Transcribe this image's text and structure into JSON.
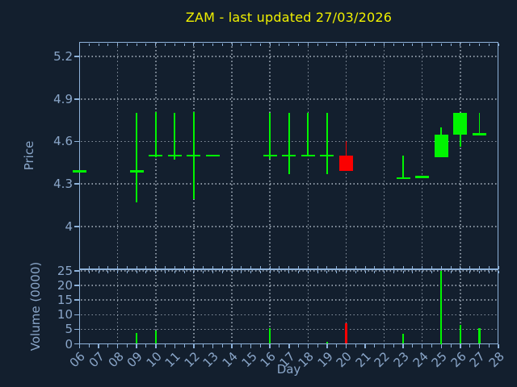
{
  "figure": {
    "title": "ZAM - last updated 27/03/2026",
    "price_axis": {
      "label": "Price",
      "tick_labels": [
        "5.2",
        "4.9",
        "4.6",
        "4.3",
        "4"
      ],
      "tick_values": [
        5.2,
        4.9,
        4.6,
        4.3,
        4.0
      ],
      "range": [
        3.7,
        5.3
      ]
    },
    "volume_axis": {
      "label": "Volume (0000)",
      "tick_labels": [
        "25",
        "20",
        "15",
        "10",
        "5",
        "0"
      ],
      "tick_values": [
        25,
        20,
        15,
        10,
        5,
        0
      ],
      "range": [
        0,
        25.3
      ]
    },
    "x_axis": {
      "label": "Day",
      "tick_labels": [
        "06",
        "07",
        "08",
        "09",
        "10",
        "11",
        "12",
        "13",
        "14",
        "15",
        "16",
        "17",
        "18",
        "19",
        "20",
        "21",
        "22",
        "23",
        "24",
        "25",
        "26",
        "27",
        "28"
      ],
      "first_day": 6,
      "last_day": 28,
      "gridline_days": [
        8,
        10,
        12,
        14,
        16,
        18,
        20,
        22,
        24,
        26
      ]
    }
  },
  "colors": {
    "background": "#131f2e",
    "spine": "#8eb2da",
    "tick_label": "#8aa6c9",
    "axis_label": "#8aa6c9",
    "title": "#f0f000",
    "grid": "rgba(200,211,223,0.65)",
    "up": "#00f400",
    "down": "#fb0000"
  },
  "chart_data": {
    "type": "candlestick",
    "title": "ZAM - last updated 27/03/2026",
    "xlabel": "Day",
    "ylabel": "Price",
    "volume_ylabel": "Volume (0000)",
    "ylim": [
      3.7,
      5.3
    ],
    "volume_ylim": [
      0,
      25.3
    ],
    "grid": true,
    "candles": [
      {
        "day": 6,
        "open": 4.39,
        "high": 4.39,
        "low": 4.39,
        "close": 4.39,
        "volume": 0,
        "dir": "up"
      },
      {
        "day": 9,
        "open": 4.39,
        "high": 4.8,
        "low": 4.17,
        "close": 4.39,
        "volume": 3.7,
        "dir": "up"
      },
      {
        "day": 10,
        "open": 4.5,
        "high": 4.81,
        "low": 4.49,
        "close": 4.5,
        "volume": 4.6,
        "dir": "up"
      },
      {
        "day": 11,
        "open": 4.5,
        "high": 4.8,
        "low": 4.47,
        "close": 4.5,
        "volume": 0,
        "dir": "up"
      },
      {
        "day": 12,
        "open": 4.5,
        "high": 4.81,
        "low": 4.19,
        "close": 4.5,
        "volume": 0,
        "dir": "up"
      },
      {
        "day": 13,
        "open": 4.5,
        "high": 4.5,
        "low": 4.5,
        "close": 4.5,
        "volume": 0,
        "dir": "up"
      },
      {
        "day": 16,
        "open": 4.5,
        "high": 4.8,
        "low": 4.48,
        "close": 4.5,
        "volume": 5.4,
        "dir": "up"
      },
      {
        "day": 17,
        "open": 4.5,
        "high": 4.8,
        "low": 4.37,
        "close": 4.5,
        "volume": 0,
        "dir": "up"
      },
      {
        "day": 18,
        "open": 4.5,
        "high": 4.8,
        "low": 4.5,
        "close": 4.5,
        "volume": 0,
        "dir": "up"
      },
      {
        "day": 19,
        "open": 4.5,
        "high": 4.8,
        "low": 4.37,
        "close": 4.5,
        "volume": 0.8,
        "dir": "up"
      },
      {
        "day": 20,
        "open": 4.5,
        "high": 4.6,
        "low": 4.39,
        "close": 4.39,
        "volume": 7.1,
        "dir": "down"
      },
      {
        "day": 23,
        "open": 4.34,
        "high": 4.5,
        "low": 4.34,
        "close": 4.34,
        "volume": 3.5,
        "dir": "up"
      },
      {
        "day": 24,
        "open": 4.35,
        "high": 4.35,
        "low": 4.35,
        "close": 4.35,
        "volume": 0,
        "dir": "up"
      },
      {
        "day": 25,
        "open": 4.49,
        "high": 4.7,
        "low": 4.49,
        "close": 4.65,
        "volume": 25.0,
        "dir": "up"
      },
      {
        "day": 26,
        "open": 4.65,
        "high": 4.8,
        "low": 4.56,
        "close": 4.8,
        "volume": 6.5,
        "dir": "up"
      },
      {
        "day": 27,
        "open": 4.65,
        "high": 4.8,
        "low": 4.65,
        "close": 4.65,
        "volume": 5.4,
        "dir": "up"
      }
    ]
  }
}
